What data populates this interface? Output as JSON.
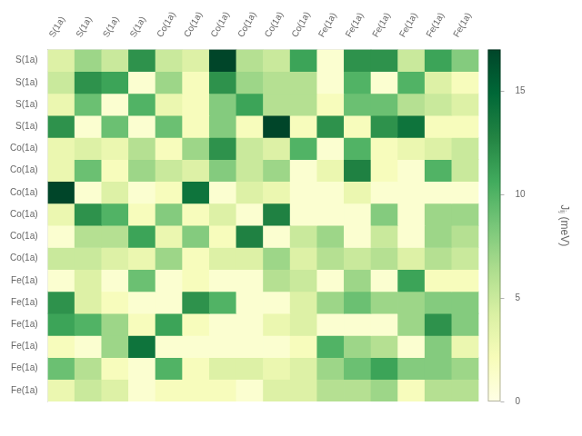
{
  "chart_data": {
    "type": "heatmap",
    "row_labels": [
      "S(1a)",
      "S(1a)",
      "S(1a)",
      "S(1a)",
      "Co(1a)",
      "Co(1a)",
      "Co(1a)",
      "Co(1a)",
      "Co(1a)",
      "Co(1a)",
      "Fe(1a)",
      "Fe(1a)",
      "Fe(1a)",
      "Fe(1a)",
      "Fe(1a)",
      "Fe(1a)"
    ],
    "col_labels": [
      "S(1a)",
      "S(1a)",
      "S(1a)",
      "S(1a)",
      "Co(1a)",
      "Co(1a)",
      "Co(1a)",
      "Co(1a)",
      "Co(1a)",
      "Co(1a)",
      "Fe(1a)",
      "Fe(1a)",
      "Fe(1a)",
      "Fe(1a)",
      "Fe(1a)",
      "Fe(1a)"
    ],
    "cells": [
      [
        4,
        7,
        5,
        12,
        5,
        4,
        17,
        6,
        5,
        11,
        1,
        12,
        12,
        5,
        11,
        8
      ],
      [
        5,
        12,
        11,
        1,
        7,
        2,
        12,
        7,
        6,
        6,
        1,
        10,
        1,
        10,
        4,
        2
      ],
      [
        3,
        9,
        1,
        10,
        3,
        2,
        8,
        11,
        6,
        6,
        2,
        9,
        9,
        6,
        5,
        4
      ],
      [
        12,
        1,
        9,
        1,
        9,
        2,
        8,
        2,
        17,
        2,
        12,
        2,
        12,
        14,
        2,
        2
      ],
      [
        3,
        4,
        3,
        6,
        2,
        7,
        12,
        5,
        4,
        10,
        1,
        10,
        2,
        3,
        4,
        5
      ],
      [
        3,
        9,
        2,
        7,
        5,
        4,
        8,
        5,
        7,
        1,
        3,
        13,
        2,
        1,
        10,
        5
      ],
      [
        17,
        1,
        4,
        1,
        2,
        14,
        1,
        4,
        3,
        1,
        1,
        3,
        1,
        1,
        1,
        1
      ],
      [
        3,
        12,
        10,
        2,
        8,
        2,
        4,
        1,
        13,
        1,
        1,
        1,
        8,
        1,
        7,
        7
      ],
      [
        1,
        6,
        6,
        11,
        3,
        8,
        2,
        13,
        1,
        5,
        7,
        1,
        5,
        1,
        7,
        6
      ],
      [
        5,
        5,
        4,
        3,
        7,
        2,
        4,
        4,
        7,
        4,
        6,
        5,
        6,
        4,
        6,
        5
      ],
      [
        1,
        4,
        1,
        9,
        1,
        2,
        1,
        1,
        6,
        5,
        1,
        7,
        1,
        11,
        2,
        2
      ],
      [
        12,
        4,
        2,
        1,
        1,
        12,
        10,
        1,
        1,
        4,
        7,
        9,
        7,
        7,
        8,
        8
      ],
      [
        11,
        10,
        7,
        2,
        11,
        2,
        1,
        1,
        3,
        4,
        1,
        1,
        1,
        7,
        12,
        8
      ],
      [
        2,
        1,
        7,
        14,
        1,
        1,
        1,
        1,
        1,
        2,
        10,
        7,
        6,
        1,
        8,
        3
      ],
      [
        9,
        6,
        2,
        1,
        10,
        2,
        4,
        4,
        3,
        4,
        7,
        9,
        11,
        8,
        8,
        7
      ],
      [
        3,
        5,
        4,
        1,
        2,
        2,
        2,
        1,
        4,
        4,
        6,
        6,
        7,
        2,
        6,
        6
      ]
    ],
    "colorbar_label": "Jᵢⱼ (meV)",
    "color_range": [
      0,
      17
    ],
    "color_ticks": [
      0,
      5,
      10,
      15
    ],
    "grid": false
  }
}
